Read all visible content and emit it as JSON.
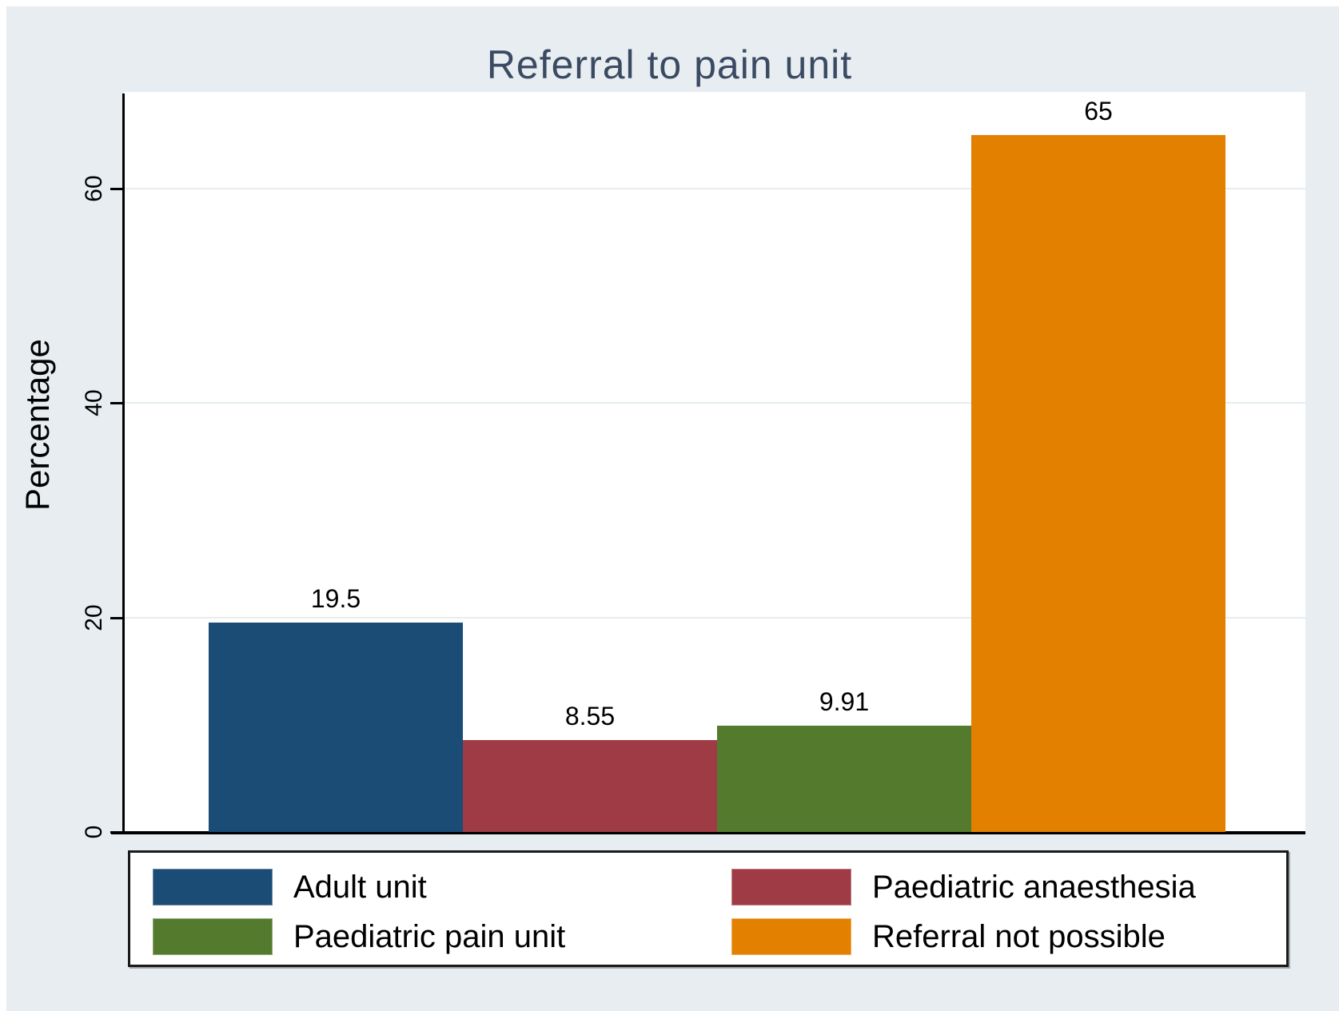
{
  "title": "Referral to pain unit",
  "colors": {
    "background": "#e7edf1",
    "plot_background": "#ffffff",
    "title_text": "#3b4a63",
    "axis": "#000000",
    "gridline": "#e7edf0",
    "bar_blue": "#1b4c75",
    "bar_red": "#9e3b44",
    "bar_green": "#547a2e",
    "bar_orange": "#e38000"
  },
  "chart_data": {
    "type": "bar",
    "title": "Referral to pain unit",
    "xlabel": "",
    "ylabel": "Percentage",
    "categories": [
      "Adult unit",
      "Paediatric anaesthesia",
      "Paediatric pain unit",
      "Referral not possible"
    ],
    "values": [
      19.5,
      8.55,
      9.91,
      65
    ],
    "value_labels": [
      "19.5",
      "8.55",
      "9.91",
      "65"
    ],
    "bar_colors": [
      "#1b4c75",
      "#9e3b44",
      "#547a2e",
      "#e38000"
    ],
    "yticks": [
      0,
      20,
      40,
      60
    ],
    "ytick_labels": [
      "0",
      "20",
      "40",
      "60"
    ],
    "ylim": [
      0,
      69
    ],
    "grid": true,
    "legend_position": "bottom"
  },
  "legend": {
    "items": [
      {
        "label": "Adult unit",
        "color": "#1b4c75"
      },
      {
        "label": "Paediatric anaesthesia",
        "color": "#9e3b44"
      },
      {
        "label": "Paediatric pain unit",
        "color": "#547a2e"
      },
      {
        "label": "Referral not possible",
        "color": "#e38000"
      }
    ]
  }
}
